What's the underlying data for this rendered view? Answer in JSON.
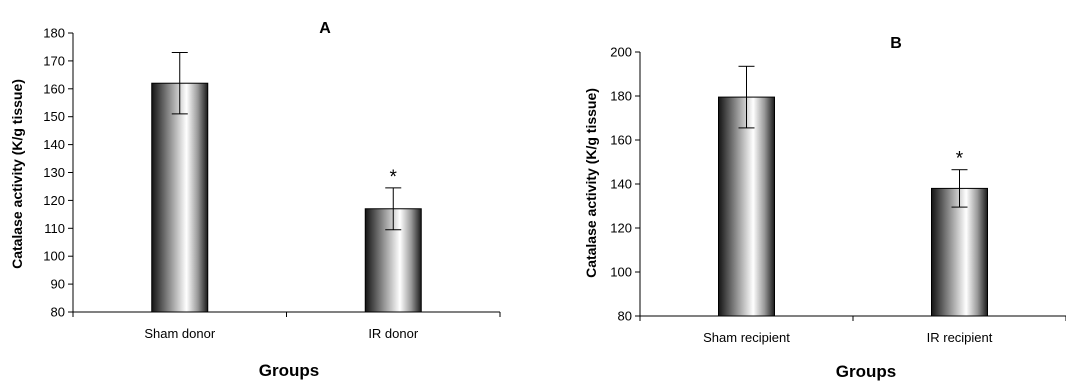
{
  "chart_data": [
    {
      "type": "bar",
      "title": "A",
      "xlabel": "Groups",
      "ylabel": "Catalase activity (K/g tissue)",
      "ylim": [
        80,
        180
      ],
      "yticks": [
        80,
        90,
        100,
        110,
        120,
        130,
        140,
        150,
        160,
        170,
        180
      ],
      "categories": [
        "Sham donor",
        "IR donor"
      ],
      "values": [
        162,
        117
      ],
      "errors": [
        11,
        7.5
      ],
      "annotations": [
        "",
        "*"
      ],
      "grid": false,
      "legend": "none"
    },
    {
      "type": "bar",
      "title": "B",
      "xlabel": "Groups",
      "ylabel": "Catalase activity (K/g tissue)",
      "ylim": [
        80,
        200
      ],
      "yticks": [
        80,
        100,
        120,
        140,
        160,
        180,
        200
      ],
      "categories": [
        "Sham recipient",
        "IR recipient"
      ],
      "values": [
        179.5,
        138
      ],
      "errors": [
        14,
        8.5
      ],
      "annotations": [
        "",
        "*"
      ],
      "grid": false,
      "legend": "none"
    }
  ],
  "colors": {
    "bar_dark": "#141414",
    "bar_light": "#ffffff",
    "axis": "#000000"
  }
}
